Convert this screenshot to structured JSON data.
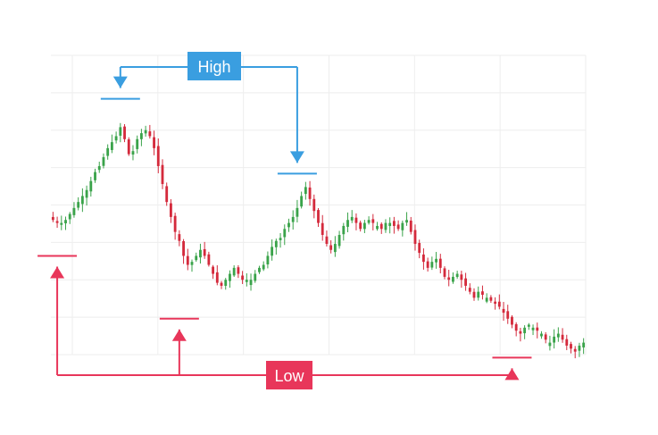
{
  "chart_data": {
    "type": "candlestick",
    "title": "",
    "xlabel": "",
    "ylabel": "",
    "grid": true,
    "legend": "none",
    "colors": {
      "up": "#3aa34a",
      "down": "#d42a3c",
      "high": "#3a9ee0",
      "low": "#e8365a",
      "grid": "#eeeeee",
      "label_text": "#ffffff"
    },
    "ylim": [
      0,
      100
    ],
    "annotations": {
      "high_label": "High",
      "low_label": "Low",
      "high_points": [
        {
          "candle": 16,
          "value": 81
        },
        {
          "candle": 58,
          "value": 56
        }
      ],
      "low_points": [
        {
          "candle": 1,
          "value": 39
        },
        {
          "candle": 30,
          "value": 18
        },
        {
          "candle": 109,
          "value": 5
        }
      ]
    },
    "close": [
      45,
      44,
      44,
      45,
      47,
      49,
      51,
      53,
      55,
      58,
      61,
      63,
      66,
      69,
      71,
      73,
      76,
      72,
      67,
      68,
      72,
      74,
      75,
      73,
      69,
      63,
      57,
      51,
      46,
      41,
      38,
      33,
      30,
      31,
      33,
      35,
      33,
      30,
      27,
      24,
      23,
      25,
      27,
      29,
      27,
      25,
      25,
      25,
      27,
      29,
      30,
      33,
      36,
      38,
      39,
      42,
      44,
      46,
      49,
      53,
      56,
      52,
      48,
      44,
      40,
      37,
      35,
      37,
      40,
      43,
      45,
      46,
      44,
      42,
      44,
      45,
      44,
      43,
      42,
      44,
      44,
      43,
      42,
      44,
      45,
      41,
      37,
      34,
      31,
      29,
      31,
      32,
      29,
      26,
      25,
      26,
      27,
      25,
      23,
      21,
      19,
      21,
      20,
      19,
      18,
      17,
      16,
      14,
      12,
      10,
      8,
      7,
      9,
      10,
      9,
      8,
      7,
      5,
      4,
      6,
      7,
      5,
      3,
      2,
      1,
      3,
      4
    ]
  }
}
